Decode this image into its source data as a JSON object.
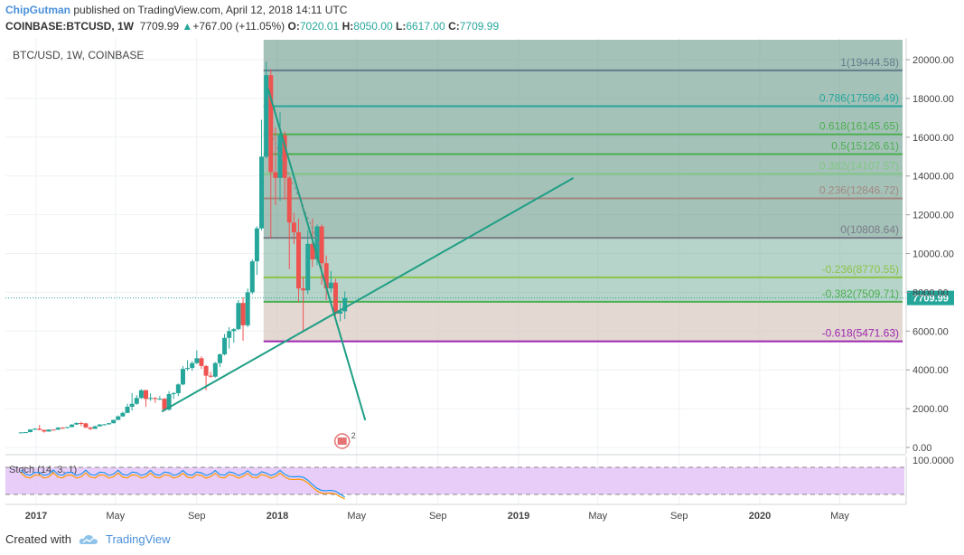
{
  "header": {
    "author": "ChipGutman",
    "published": "published on TradingView.com, April 12, 2018 14:11 UTC",
    "symbol": "COINBASE:BTCUSD, 1W",
    "last": "7709.99",
    "change": "+767.00 (+11.05%)",
    "o_label": "O:",
    "o": "7020.01",
    "h_label": "H:",
    "h": "8050.00",
    "l_label": "L:",
    "l": "6617.00",
    "c_label": "C:",
    "c": "7709.99"
  },
  "panel_title": "BTC/USD, 1W, COINBASE",
  "price_tag": "7709.99",
  "stoch_label": "Stoch (14, 3, 1)",
  "stoch_level": "100.0000",
  "footer": {
    "created_with": "Created with",
    "brand": "TradingView"
  },
  "colors": {
    "up": "#26a69a",
    "down": "#ef5350",
    "trendline": "#1e9e84",
    "fib_zone_top": "#5b8f7f",
    "fib_zone_low": "#d8c8c0",
    "stoch_band": "#e6c8f8"
  },
  "chart_data": {
    "type": "candlestick",
    "title": "BTC/USD, 1W, COINBASE",
    "y_axis": {
      "ticks": [
        0,
        2000,
        4000,
        6000,
        8000,
        10000,
        12000,
        14000,
        16000,
        18000,
        20000
      ],
      "tick_labels": [
        "0.00",
        "2000.00",
        "4000.00",
        "6000.00",
        "8000.00",
        "10000.00",
        "12000.00",
        "14000.00",
        "16000.00",
        "18000.00",
        "20000.00"
      ]
    },
    "x_axis": {
      "tick_labels": [
        "2017",
        "May",
        "Sep",
        "2018",
        "May",
        "Sep",
        "2019",
        "May",
        "Sep",
        "2020",
        "May"
      ],
      "tick_dates": [
        "2017-01-01",
        "2017-05-01",
        "2017-09-01",
        "2018-01-01",
        "2018-05-01",
        "2018-09-01",
        "2019-01-01",
        "2019-05-01",
        "2019-09-01",
        "2020-01-01",
        "2020-05-01"
      ]
    },
    "candles": [
      {
        "date": "2016-12-05",
        "o": 770,
        "h": 780,
        "l": 755,
        "c": 775
      },
      {
        "date": "2016-12-12",
        "o": 775,
        "h": 795,
        "l": 770,
        "c": 790
      },
      {
        "date": "2016-12-19",
        "o": 790,
        "h": 935,
        "l": 785,
        "c": 925
      },
      {
        "date": "2016-12-26",
        "o": 925,
        "h": 1000,
        "l": 890,
        "c": 965
      },
      {
        "date": "2017-01-02",
        "o": 965,
        "h": 1160,
        "l": 880,
        "c": 905
      },
      {
        "date": "2017-01-09",
        "o": 905,
        "h": 915,
        "l": 760,
        "c": 820
      },
      {
        "date": "2017-01-16",
        "o": 820,
        "h": 935,
        "l": 810,
        "c": 920
      },
      {
        "date": "2017-01-23",
        "o": 920,
        "h": 930,
        "l": 880,
        "c": 915
      },
      {
        "date": "2017-01-30",
        "o": 915,
        "h": 1050,
        "l": 910,
        "c": 1020
      },
      {
        "date": "2017-02-06",
        "o": 1020,
        "h": 1045,
        "l": 950,
        "c": 1000
      },
      {
        "date": "2017-02-13",
        "o": 1000,
        "h": 1060,
        "l": 990,
        "c": 1050
      },
      {
        "date": "2017-02-20",
        "o": 1050,
        "h": 1200,
        "l": 1040,
        "c": 1180
      },
      {
        "date": "2017-02-27",
        "o": 1180,
        "h": 1290,
        "l": 1170,
        "c": 1260
      },
      {
        "date": "2017-03-06",
        "o": 1260,
        "h": 1320,
        "l": 1100,
        "c": 1240
      },
      {
        "date": "2017-03-13",
        "o": 1240,
        "h": 1270,
        "l": 1000,
        "c": 1030
      },
      {
        "date": "2017-03-20",
        "o": 1030,
        "h": 1060,
        "l": 890,
        "c": 960
      },
      {
        "date": "2017-03-27",
        "o": 960,
        "h": 1120,
        "l": 950,
        "c": 1090
      },
      {
        "date": "2017-04-03",
        "o": 1090,
        "h": 1210,
        "l": 1080,
        "c": 1180
      },
      {
        "date": "2017-04-10",
        "o": 1180,
        "h": 1210,
        "l": 1150,
        "c": 1190
      },
      {
        "date": "2017-04-17",
        "o": 1190,
        "h": 1270,
        "l": 1180,
        "c": 1250
      },
      {
        "date": "2017-04-24",
        "o": 1250,
        "h": 1430,
        "l": 1240,
        "c": 1420
      },
      {
        "date": "2017-05-01",
        "o": 1420,
        "h": 1650,
        "l": 1410,
        "c": 1600
      },
      {
        "date": "2017-05-08",
        "o": 1600,
        "h": 1850,
        "l": 1580,
        "c": 1780
      },
      {
        "date": "2017-05-15",
        "o": 1780,
        "h": 2250,
        "l": 1770,
        "c": 2100
      },
      {
        "date": "2017-05-22",
        "o": 2100,
        "h": 2800,
        "l": 1900,
        "c": 2250
      },
      {
        "date": "2017-05-29",
        "o": 2250,
        "h": 2700,
        "l": 2200,
        "c": 2550
      },
      {
        "date": "2017-06-05",
        "o": 2550,
        "h": 3000,
        "l": 2500,
        "c": 2950
      },
      {
        "date": "2017-06-12",
        "o": 2950,
        "h": 2980,
        "l": 2100,
        "c": 2500
      },
      {
        "date": "2017-06-19",
        "o": 2500,
        "h": 2790,
        "l": 2400,
        "c": 2550
      },
      {
        "date": "2017-06-26",
        "o": 2550,
        "h": 2600,
        "l": 2300,
        "c": 2500
      },
      {
        "date": "2017-07-03",
        "o": 2500,
        "h": 2650,
        "l": 2450,
        "c": 2510
      },
      {
        "date": "2017-07-10",
        "o": 2510,
        "h": 2550,
        "l": 1850,
        "c": 1950
      },
      {
        "date": "2017-07-17",
        "o": 1950,
        "h": 2900,
        "l": 1900,
        "c": 2750
      },
      {
        "date": "2017-07-24",
        "o": 2750,
        "h": 2850,
        "l": 2500,
        "c": 2800
      },
      {
        "date": "2017-07-31",
        "o": 2800,
        "h": 3300,
        "l": 2650,
        "c": 3250
      },
      {
        "date": "2017-08-07",
        "o": 3250,
        "h": 4200,
        "l": 3200,
        "c": 4050
      },
      {
        "date": "2017-08-14",
        "o": 4050,
        "h": 4500,
        "l": 3950,
        "c": 4100
      },
      {
        "date": "2017-08-21",
        "o": 4100,
        "h": 4450,
        "l": 3950,
        "c": 4350
      },
      {
        "date": "2017-08-28",
        "o": 4350,
        "h": 5000,
        "l": 4300,
        "c": 4600
      },
      {
        "date": "2017-09-04",
        "o": 4600,
        "h": 4700,
        "l": 4050,
        "c": 4200
      },
      {
        "date": "2017-09-11",
        "o": 4200,
        "h": 4250,
        "l": 2950,
        "c": 3700
      },
      {
        "date": "2017-09-18",
        "o": 3700,
        "h": 3900,
        "l": 3600,
        "c": 3650
      },
      {
        "date": "2017-09-25",
        "o": 3650,
        "h": 4400,
        "l": 3600,
        "c": 4350
      },
      {
        "date": "2017-10-02",
        "o": 4350,
        "h": 4850,
        "l": 4150,
        "c": 4800
      },
      {
        "date": "2017-10-09",
        "o": 4800,
        "h": 5850,
        "l": 4750,
        "c": 5650
      },
      {
        "date": "2017-10-16",
        "o": 5650,
        "h": 6200,
        "l": 5100,
        "c": 6000
      },
      {
        "date": "2017-10-23",
        "o": 6000,
        "h": 6150,
        "l": 5400,
        "c": 6100
      },
      {
        "date": "2017-10-30",
        "o": 6100,
        "h": 7600,
        "l": 6050,
        "c": 7450
      },
      {
        "date": "2017-11-06",
        "o": 7450,
        "h": 7750,
        "l": 5500,
        "c": 6300
      },
      {
        "date": "2017-11-13",
        "o": 6300,
        "h": 8200,
        "l": 6200,
        "c": 8000
      },
      {
        "date": "2017-11-20",
        "o": 8000,
        "h": 9700,
        "l": 7900,
        "c": 9600
      },
      {
        "date": "2017-11-27",
        "o": 9600,
        "h": 11400,
        "l": 8900,
        "c": 11300
      },
      {
        "date": "2017-12-04",
        "o": 11300,
        "h": 16900,
        "l": 11200,
        "c": 15000
      },
      {
        "date": "2017-12-11",
        "o": 15000,
        "h": 19891,
        "l": 14900,
        "c": 19200
      },
      {
        "date": "2017-12-18",
        "o": 19200,
        "h": 19500,
        "l": 10800,
        "c": 14200
      },
      {
        "date": "2017-12-25",
        "o": 14200,
        "h": 16500,
        "l": 12500,
        "c": 13900
      },
      {
        "date": "2018-01-01",
        "o": 13900,
        "h": 17300,
        "l": 12700,
        "c": 16100
      },
      {
        "date": "2018-01-08",
        "o": 16100,
        "h": 16300,
        "l": 12800,
        "c": 13900
      },
      {
        "date": "2018-01-15",
        "o": 13900,
        "h": 14000,
        "l": 9200,
        "c": 11600
      },
      {
        "date": "2018-01-22",
        "o": 11600,
        "h": 12100,
        "l": 10500,
        "c": 11100
      },
      {
        "date": "2018-01-29",
        "o": 11100,
        "h": 11800,
        "l": 7500,
        "c": 8200
      },
      {
        "date": "2018-02-05",
        "o": 8200,
        "h": 8800,
        "l": 6000,
        "c": 8100
      },
      {
        "date": "2018-02-12",
        "o": 8100,
        "h": 11200,
        "l": 7900,
        "c": 10500
      },
      {
        "date": "2018-02-19",
        "o": 10500,
        "h": 11800,
        "l": 9300,
        "c": 9700
      },
      {
        "date": "2018-02-26",
        "o": 9700,
        "h": 11500,
        "l": 9400,
        "c": 11400
      },
      {
        "date": "2018-03-05",
        "o": 11400,
        "h": 11500,
        "l": 8400,
        "c": 9500
      },
      {
        "date": "2018-03-12",
        "o": 9500,
        "h": 9900,
        "l": 7600,
        "c": 8200
      },
      {
        "date": "2018-03-19",
        "o": 8200,
        "h": 9100,
        "l": 8000,
        "c": 8500
      },
      {
        "date": "2018-03-26",
        "o": 8500,
        "h": 8700,
        "l": 6800,
        "c": 6900
      },
      {
        "date": "2018-04-02",
        "o": 6900,
        "h": 7450,
        "l": 6500,
        "c": 7020
      },
      {
        "date": "2018-04-09",
        "o": 7020,
        "h": 8050,
        "l": 6617,
        "c": 7709.99
      }
    ],
    "fibonacci": [
      {
        "label": "1(19444.58)",
        "value": 19444.58,
        "color": "#607d8b"
      },
      {
        "label": "0.786(17596.49)",
        "value": 17596.49,
        "color": "#26a69a"
      },
      {
        "label": "0.618(16145.65)",
        "value": 16145.65,
        "color": "#4caf50"
      },
      {
        "label": "0.5(15126.61)",
        "value": 15126.61,
        "color": "#4caf50"
      },
      {
        "label": "0.382(14107.57)",
        "value": 14107.57,
        "color": "#81c784"
      },
      {
        "label": "0.236(12846.72)",
        "value": 12846.72,
        "color": "#a1887f"
      },
      {
        "label": "0(10808.64)",
        "value": 10808.64,
        "color": "#787b86"
      },
      {
        "label": "-0.236(8770.55)",
        "value": 8770.55,
        "color": "#8bc34a"
      },
      {
        "label": "-0.382(7509.71)",
        "value": 7509.71,
        "color": "#4caf50"
      },
      {
        "label": "-0.618(5471.63)",
        "value": 5471.63,
        "color": "#9c27b0"
      }
    ],
    "trendlines": [
      {
        "from": {
          "date": "2017-07-10",
          "value": 1850
        },
        "to": {
          "date": "2019-03-25",
          "value": 13900
        }
      },
      {
        "from": {
          "date": "2017-12-18",
          "value": 18500
        },
        "to": {
          "date": "2018-05-14",
          "value": 1400
        }
      }
    ],
    "stoch": {
      "upper": 100.0,
      "label": "Stoch (14, 3, 1)"
    }
  }
}
